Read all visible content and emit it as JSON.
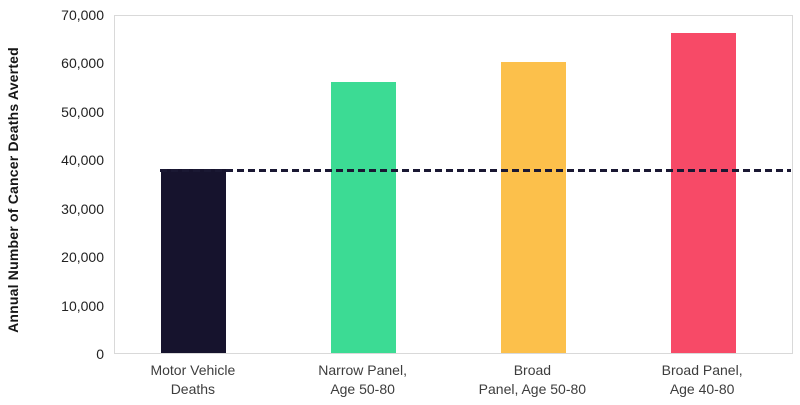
{
  "chart_data": {
    "type": "bar",
    "title": "",
    "xlabel": "",
    "ylabel": "Annual Number of Cancer Deaths Averted",
    "ymin": 0,
    "ymax": 70000,
    "ytick_step": 10000,
    "ytick_labels": [
      "0",
      "10,000",
      "20,000",
      "30,000",
      "40,000",
      "50,000",
      "60,000",
      "70,000"
    ],
    "categories": [
      "Motor Vehicle Deaths",
      "Narrow Panel, Age 50-80",
      "Broad Panel, Age 50-80",
      "Broad Panel, Age 40-80"
    ],
    "category_label_lines": [
      [
        "Motor Vehicle",
        "Deaths"
      ],
      [
        "Narrow Panel,",
        "Age 50-80"
      ],
      [
        "Broad",
        "Panel, Age 50-80"
      ],
      [
        "Broad Panel,",
        "Age 40-80"
      ]
    ],
    "values": [
      38000,
      56000,
      60000,
      66000
    ],
    "bar_colors": [
      "#16132d",
      "#3cdb94",
      "#fcc04b",
      "#f74a67"
    ],
    "reference_line": {
      "value": 38000,
      "style": "dashed",
      "color": "#1a1833"
    },
    "grid": false,
    "legend": false,
    "plot_border_color": "#d9d9d9"
  }
}
